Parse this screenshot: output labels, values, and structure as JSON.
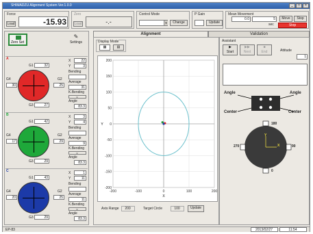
{
  "window": {
    "title": "SHIMADZU Alignment System Ver.1.0.0"
  },
  "top": {
    "force_label": "Force",
    "force_btn": "Load",
    "force_value": "-15.93",
    "zero_label": "Zero",
    "zero_btn": "Load",
    "zero_value": "-.-",
    "control_mode_label": "Control Mode",
    "control_mode_value": "",
    "change_label": "Change",
    "pgain_label": "P Gain",
    "pgain_value": "",
    "update_label": "Update",
    "mean_movement_label": "Mean Movement",
    "mm_value1": "0.0",
    "mm_value2": "5",
    "sec_label": "sec",
    "move_label": "Move",
    "stop_label": "Stop",
    "red_btn_label": "Stop"
  },
  "left": {
    "zeroset_label": "Zero Set",
    "settings_label": "Settings",
    "sensors": [
      {
        "letter": "A",
        "color": "#e02828",
        "top_label": "G1",
        "top_value": "32",
        "left_label": "G4",
        "left_value": "30",
        "right_label": "G2",
        "right_value": "25",
        "bottom_label": "G3",
        "bottom_value": "27",
        "x_value": "22",
        "y_value": "3",
        "bending_label": "Bending",
        "bending_value": "",
        "average_label": "Average",
        "average_value": "31",
        "kbending_label": "K.Bending",
        "angle_label": "Angle",
        "angle_value": "83.3"
      },
      {
        "letter": "B",
        "color": "#1ea83a",
        "top_label": "G1",
        "top_value": "42",
        "left_label": "G4",
        "left_value": "17",
        "right_label": "G2",
        "right_value": "29",
        "bottom_label": "G3",
        "bottom_value": "29",
        "x_value": "3",
        "y_value": "4",
        "bending_label": "Bending",
        "bending_value": "",
        "average_label": "Average",
        "average_value": "9",
        "kbending_label": "K.Bending",
        "angle_label": "Angle",
        "angle_value": "83.3"
      },
      {
        "letter": "C",
        "color": "#1c3aa8",
        "top_label": "G1",
        "top_value": "43",
        "left_label": "G4",
        "left_value": "20",
        "right_label": "G2",
        "right_value": "25",
        "bottom_label": "G3",
        "bottom_value": "29",
        "x_value": "1",
        "y_value": "11",
        "bending_label": "Bending",
        "bending_value": "",
        "average_label": "Average",
        "average_value": "11",
        "kbending_label": "K.Bending",
        "angle_label": "Angle",
        "angle_value": "83.3"
      }
    ]
  },
  "tabs": {
    "alignment": "Alignment",
    "validation": "Validation"
  },
  "center": {
    "display_mode_label": "Display Mode",
    "y_label": "Y",
    "x_label": "X",
    "axis_range_label": "Axis Range",
    "axis_range_value": "200",
    "target_circle_label": "Target Circle",
    "target_circle_value": "100",
    "update_label": "Update"
  },
  "chart_data": {
    "type": "scatter",
    "xlim": [
      -200,
      200
    ],
    "ylim": [
      -200,
      200
    ],
    "xticks": [
      "-200",
      "-100",
      "0",
      "100",
      "200"
    ],
    "yticks": [
      "200",
      "150",
      "100",
      "50",
      "0",
      "-50",
      "-100",
      "-150",
      "-200"
    ],
    "target_circle_radius": 100,
    "points": [
      {
        "x": -5,
        "y": 5,
        "color": "#1e9a3a"
      },
      {
        "x": 5,
        "y": 2,
        "color": "#e02828"
      },
      {
        "x": 0,
        "y": 0,
        "color": "#1c3aa8"
      }
    ],
    "circle_color": "#6ac0cc",
    "grid": true
  },
  "right": {
    "assistant_label": "Assistant",
    "start_label": "Start",
    "next_label": "Next",
    "end_label": "End",
    "attitude_label": "Attitude",
    "attitude_value": "1",
    "angle_left": "Angle",
    "angle_right": "Angle",
    "center_left": "Center",
    "center_right": "Center",
    "dial_180": "180",
    "dial_270": "270",
    "dial_90": "90",
    "dial_0": "0",
    "dial_y": "Y",
    "dial_x": "X"
  },
  "status": {
    "left": "EP-83",
    "date": "2013/02/27",
    "time": "11:54"
  }
}
